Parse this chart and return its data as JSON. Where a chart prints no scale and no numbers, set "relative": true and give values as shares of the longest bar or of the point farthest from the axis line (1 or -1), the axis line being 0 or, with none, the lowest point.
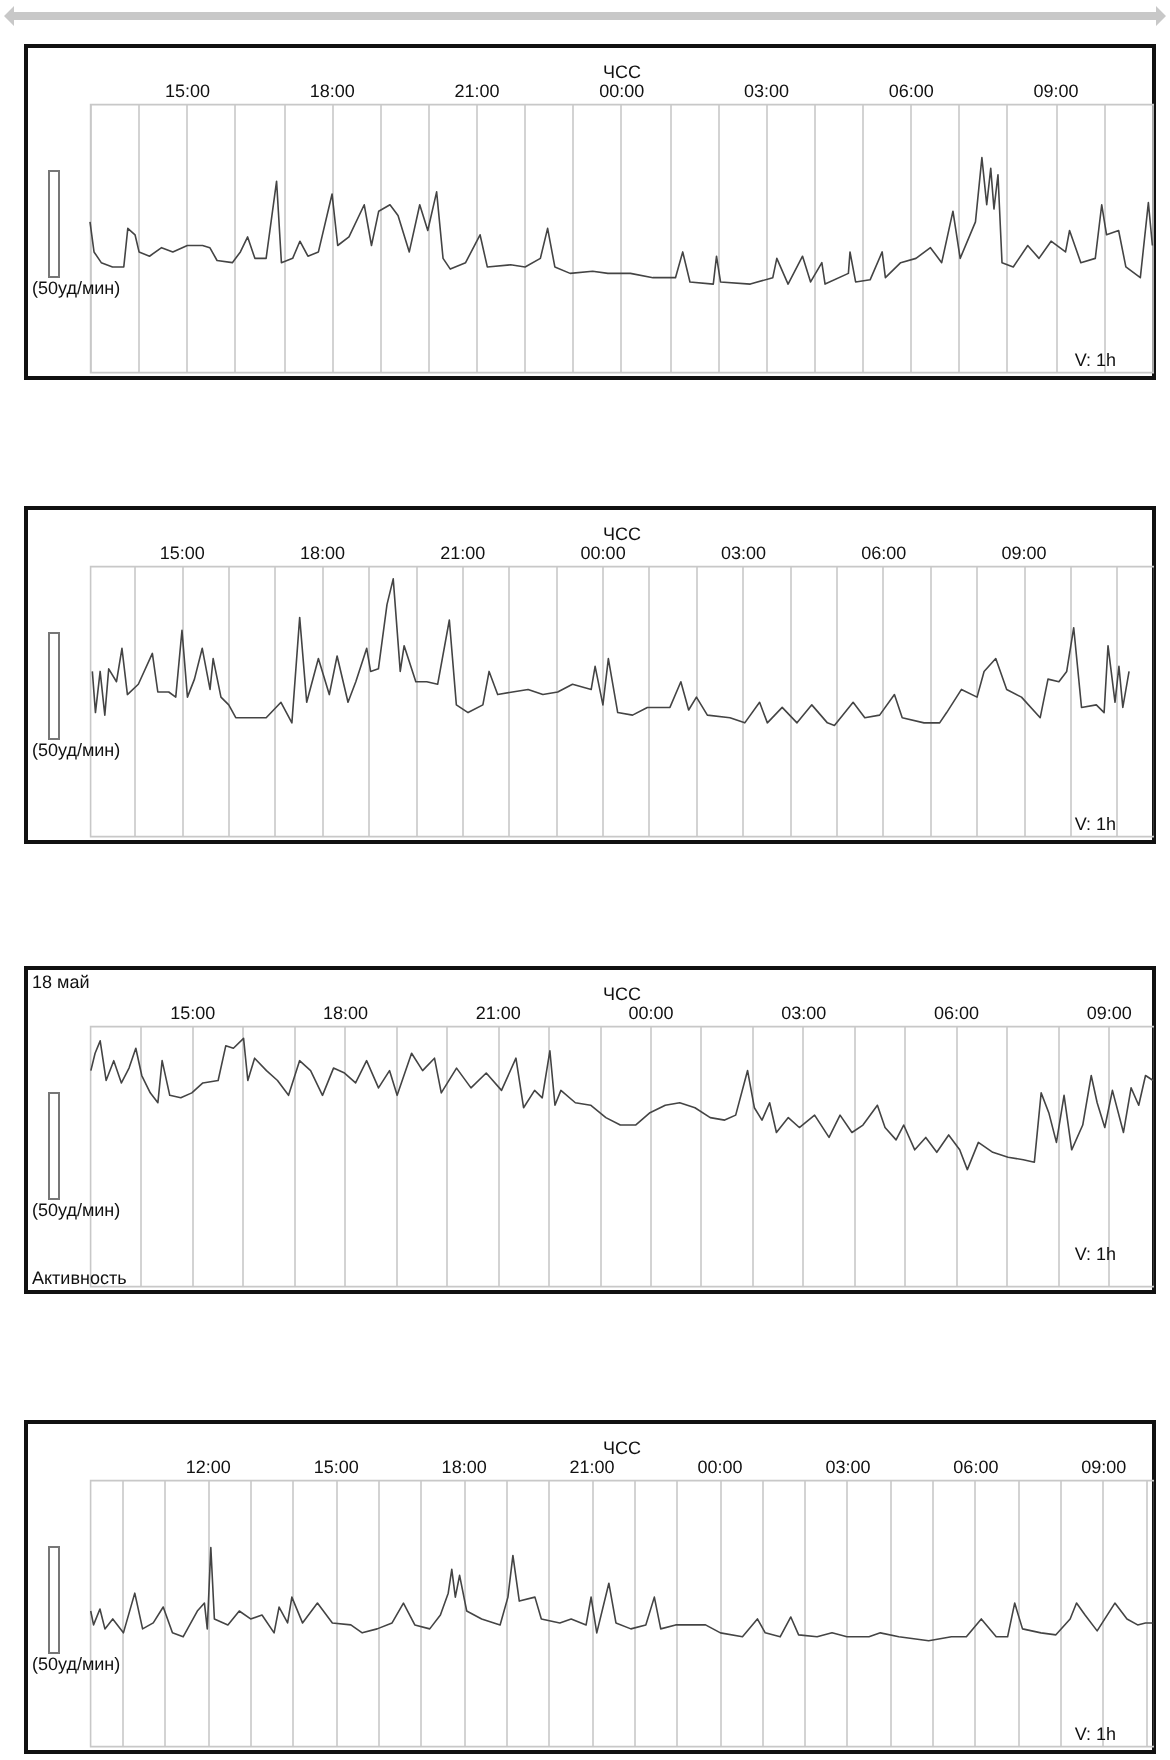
{
  "chart_data": [
    {
      "type": "line",
      "title": "ЧСС",
      "relative": true,
      "grid": "x",
      "annotations": [
        "(50уд/мин)",
        "V: 1h"
      ],
      "xlim": [
        "--05-18T13:00",
        "--05-19T11:03"
      ],
      "xticks": [
        {
          "value": "--05-18T13:00",
          "label": null
        },
        {
          "value": "--05-18T14:00",
          "label": null
        },
        {
          "value": "--05-18T15:00",
          "label": "15:00"
        },
        {
          "value": "--05-18T16:00",
          "label": null
        },
        {
          "value": "--05-18T17:00",
          "label": null
        },
        {
          "value": "--05-18T18:00",
          "label": "18:00"
        },
        {
          "value": "--05-18T19:00",
          "label": null
        },
        {
          "value": "--05-18T20:00",
          "label": null
        },
        {
          "value": "--05-18T21:00",
          "label": "21:00"
        },
        {
          "value": "--05-18T22:00",
          "label": null
        },
        {
          "value": "--05-18T23:00",
          "label": null
        },
        {
          "value": "--05-19T00:00",
          "label": "00:00"
        },
        {
          "value": "--05-19T01:00",
          "label": null
        },
        {
          "value": "--05-19T02:00",
          "label": null
        },
        {
          "value": "--05-19T03:00",
          "label": "03:00"
        },
        {
          "value": "--05-19T04:00",
          "label": null
        },
        {
          "value": "--05-19T05:00",
          "label": null
        },
        {
          "value": "--05-19T06:00",
          "label": "06:00"
        },
        {
          "value": "--05-19T07:00",
          "label": null
        },
        {
          "value": "--05-19T08:00",
          "label": null
        },
        {
          "value": "--05-19T09:00",
          "label": "09:00"
        },
        {
          "value": "--05-19T10:00",
          "label": null
        },
        {
          "value": "--05-19T11:00",
          "label": null
        }
      ],
      "x": [
        "--05-18T13:00",
        "--05-18T13:05",
        "--05-18T13:14",
        "--05-18T13:28",
        "--05-18T13:42",
        "--05-18T13:47",
        "--05-18T13:56",
        "--05-18T14:01",
        "--05-18T14:14",
        "--05-18T14:29",
        "--05-18T14:43",
        "--05-18T15:01",
        "--05-18T15:20",
        "--05-18T15:29",
        "--05-18T15:38",
        "--05-18T15:57",
        "--05-18T16:07",
        "--05-18T16:16",
        "--05-18T16:25",
        "--05-18T16:39",
        "--05-18T16:52",
        "--05-18T16:58",
        "--05-18T17:12",
        "--05-18T17:21",
        "--05-18T17:31",
        "--05-18T17:44",
        "--05-18T18:01",
        "--05-18T18:08",
        "--05-18T18:22",
        "--05-18T18:41",
        "--05-18T18:50",
        "--05-18T18:59",
        "--05-18T19:13",
        "--05-18T19:23",
        "--05-18T19:37",
        "--05-18T19:50",
        "--05-18T20:00",
        "--05-18T20:11",
        "--05-18T20:19",
        "--05-18T20:28",
        "--05-18T20:47",
        "--05-18T21:05",
        "--05-18T21:14",
        "--05-18T21:43",
        "--05-18T22:01",
        "--05-18T22:20",
        "--05-18T22:29",
        "--05-18T22:38",
        "--05-18T22:57",
        "--05-18T23:25",
        "--05-18T23:44",
        "--05-19T00:12",
        "--05-19T00:40",
        "--05-19T01:08",
        "--05-19T01:17",
        "--05-19T01:26",
        "--05-19T01:55",
        "--05-19T01:59",
        "--05-19T02:04",
        "--05-19T02:41",
        "--05-19T03:09",
        "--05-19T03:14",
        "--05-19T03:28",
        "--05-19T03:46",
        "--05-19T03:56",
        "--05-19T04:10",
        "--05-19T04:14",
        "--05-19T04:43",
        "--05-19T04:45",
        "--05-19T04:52",
        "--05-19T05:10",
        "--05-19T05:25",
        "--05-19T05:29",
        "--05-19T05:48",
        "--05-19T06:07",
        "--05-19T06:25",
        "--05-19T06:39",
        "--05-19T06:53",
        "--05-19T07:02",
        "--05-19T07:21",
        "--05-19T07:29",
        "--05-19T07:35",
        "--05-19T07:40",
        "--05-19T07:44",
        "--05-19T07:49",
        "--05-19T07:54",
        "--05-19T08:08",
        "--05-19T08:26",
        "--05-19T08:40",
        "--05-19T08:55",
        "--05-19T09:13",
        "--05-19T09:18",
        "--05-19T09:32",
        "--05-19T09:50",
        "--05-19T09:58",
        "--05-19T10:04",
        "--05-19T10:19",
        "--05-19T10:28",
        "--05-19T10:46",
        "--05-19T10:56",
        "--05-19T11:01"
      ],
      "series": [
        {
          "color": "#444444",
          "values": [
            0.7,
            0.56,
            0.51,
            0.49,
            0.49,
            0.67,
            0.64,
            0.56,
            0.54,
            0.58,
            0.56,
            0.59,
            0.59,
            0.58,
            0.52,
            0.51,
            0.56,
            0.63,
            0.53,
            0.53,
            0.89,
            0.51,
            0.53,
            0.61,
            0.54,
            0.56,
            0.83,
            0.59,
            0.63,
            0.78,
            0.59,
            0.75,
            0.78,
            0.73,
            0.56,
            0.78,
            0.66,
            0.84,
            0.53,
            0.48,
            0.51,
            0.64,
            0.49,
            0.5,
            0.49,
            0.53,
            0.67,
            0.49,
            0.46,
            0.47,
            0.46,
            0.46,
            0.44,
            0.44,
            0.56,
            0.42,
            0.41,
            0.54,
            0.42,
            0.41,
            0.44,
            0.53,
            0.41,
            0.54,
            0.42,
            0.51,
            0.41,
            0.46,
            0.56,
            0.42,
            0.43,
            0.56,
            0.44,
            0.51,
            0.53,
            0.58,
            0.51,
            0.75,
            0.53,
            0.7,
            1,
            0.78,
            0.95,
            0.76,
            0.92,
            0.51,
            0.49,
            0.59,
            0.53,
            0.61,
            0.56,
            0.66,
            0.51,
            0.53,
            0.78,
            0.64,
            0.66,
            0.49,
            0.44,
            0.79,
            0.59
          ]
        }
      ]
    },
    {
      "type": "line",
      "title": "ЧСС",
      "relative": true,
      "grid": "x",
      "annotations": [
        "(50уд/мин)",
        "V: 1h"
      ],
      "xlim": [
        "--05-18T13:03",
        "--05-19T11:48"
      ],
      "xticks": [
        {
          "value": "--05-18T14:00",
          "label": null
        },
        {
          "value": "--05-18T15:00",
          "label": "15:00"
        },
        {
          "value": "--05-18T16:00",
          "label": null
        },
        {
          "value": "--05-18T17:00",
          "label": null
        },
        {
          "value": "--05-18T18:00",
          "label": "18:00"
        },
        {
          "value": "--05-18T19:00",
          "label": null
        },
        {
          "value": "--05-18T20:00",
          "label": null
        },
        {
          "value": "--05-18T21:00",
          "label": "21:00"
        },
        {
          "value": "--05-18T22:00",
          "label": null
        },
        {
          "value": "--05-18T23:00",
          "label": null
        },
        {
          "value": "--05-19T00:00",
          "label": "00:00"
        },
        {
          "value": "--05-19T01:00",
          "label": null
        },
        {
          "value": "--05-19T02:00",
          "label": null
        },
        {
          "value": "--05-19T03:00",
          "label": "03:00"
        },
        {
          "value": "--05-19T04:00",
          "label": null
        },
        {
          "value": "--05-19T05:00",
          "label": null
        },
        {
          "value": "--05-19T06:00",
          "label": "06:00"
        },
        {
          "value": "--05-19T07:00",
          "label": null
        },
        {
          "value": "--05-19T08:00",
          "label": null
        },
        {
          "value": "--05-19T09:00",
          "label": "09:00"
        },
        {
          "value": "--05-19T10:00",
          "label": null
        },
        {
          "value": "--05-19T11:00",
          "label": null
        }
      ],
      "x": [
        "--05-18T13:06",
        "--05-18T13:10",
        "--05-18T13:16",
        "--05-18T13:22",
        "--05-18T13:27",
        "--05-18T13:37",
        "--05-18T13:44",
        "--05-18T13:51",
        "--05-18T14:05",
        "--05-18T14:23",
        "--05-18T14:30",
        "--05-18T14:44",
        "--05-18T14:53",
        "--05-18T15:01",
        "--05-18T15:08",
        "--05-18T15:17",
        "--05-18T15:27",
        "--05-18T15:37",
        "--05-18T15:41",
        "--05-18T15:51",
        "--05-18T16:01",
        "--05-18T16:10",
        "--05-18T16:29",
        "--05-18T16:49",
        "--05-18T17:08",
        "--05-18T17:22",
        "--05-18T17:32",
        "--05-18T17:41",
        "--05-18T17:56",
        "--05-18T18:10",
        "--05-18T18:20",
        "--05-18T18:34",
        "--05-18T18:44",
        "--05-18T18:58",
        "--05-18T19:03",
        "--05-18T19:13",
        "--05-18T19:24",
        "--05-18T19:32",
        "--05-18T19:41",
        "--05-18T19:46",
        "--05-18T20:01",
        "--05-18T20:15",
        "--05-18T20:29",
        "--05-18T20:44",
        "--05-18T20:53",
        "--05-18T21:08",
        "--05-18T21:27",
        "--05-18T21:35",
        "--05-18T21:46",
        "--05-18T22:05",
        "--05-18T22:25",
        "--05-18T22:44",
        "--05-18T23:03",
        "--05-18T23:22",
        "--05-18T23:46",
        "--05-18T23:51",
        "--05-19T00:01",
        "--05-19T00:08",
        "--05-19T00:20",
        "--05-19T00:39",
        "--05-19T00:58",
        "--05-19T01:27",
        "--05-19T01:41",
        "--05-19T01:51",
        "--05-19T02:01",
        "--05-19T02:15",
        "--05-19T02:44",
        "--05-19T03:03",
        "--05-19T03:22",
        "--05-19T03:32",
        "--05-19T03:51",
        "--05-19T04:10",
        "--05-19T04:29",
        "--05-19T04:49",
        "--05-19T04:58",
        "--05-19T05:22",
        "--05-19T05:37",
        "--05-19T05:56",
        "--05-19T06:15",
        "--05-19T06:25",
        "--05-19T06:53",
        "--05-19T07:13",
        "--05-19T07:22",
        "--05-19T07:41",
        "--05-19T08:01",
        "--05-19T08:10",
        "--05-19T08:25",
        "--05-19T08:39",
        "--05-19T08:58",
        "--05-19T09:22",
        "--05-19T09:32",
        "--05-19T09:46",
        "--05-19T09:56",
        "--05-19T10:05",
        "--05-19T10:15",
        "--05-19T10:34",
        "--05-19T10:44",
        "--05-19T10:49",
        "--05-19T10:58",
        "--05-19T11:03",
        "--05-19T11:08",
        "--05-19T11:16"
      ],
      "series": [
        {
          "color": "#444444",
          "values": [
            0.64,
            0.48,
            0.64,
            0.47,
            0.65,
            0.6,
            0.73,
            0.55,
            0.59,
            0.71,
            0.56,
            0.56,
            0.54,
            0.8,
            0.54,
            0.61,
            0.73,
            0.57,
            0.69,
            0.54,
            0.51,
            0.46,
            0.46,
            0.46,
            0.52,
            0.44,
            0.85,
            0.52,
            0.69,
            0.55,
            0.7,
            0.52,
            0.6,
            0.73,
            0.64,
            0.65,
            0.9,
            1,
            0.64,
            0.74,
            0.6,
            0.6,
            0.59,
            0.84,
            0.51,
            0.48,
            0.51,
            0.64,
            0.55,
            0.56,
            0.57,
            0.55,
            0.56,
            0.59,
            0.57,
            0.66,
            0.51,
            0.69,
            0.48,
            0.47,
            0.5,
            0.5,
            0.6,
            0.49,
            0.54,
            0.47,
            0.46,
            0.44,
            0.52,
            0.44,
            0.5,
            0.44,
            0.51,
            0.44,
            0.43,
            0.52,
            0.46,
            0.47,
            0.55,
            0.46,
            0.44,
            0.44,
            0.48,
            0.57,
            0.54,
            0.64,
            0.69,
            0.57,
            0.54,
            0.46,
            0.61,
            0.6,
            0.64,
            0.81,
            0.5,
            0.51,
            0.48,
            0.74,
            0.52,
            0.66,
            0.5,
            0.64
          ]
        }
      ]
    },
    {
      "type": "line",
      "title": "ЧСС",
      "relative": true,
      "grid": "x",
      "annotations": [
        "18 май",
        "(50уд/мин)",
        "V: 1h",
        "Активность"
      ],
      "xlim": [
        "--05-18T13:00",
        "--05-19T09:54"
      ],
      "xticks": [
        {
          "value": "--05-18T14:00",
          "label": null
        },
        {
          "value": "--05-18T15:00",
          "label": "15:00"
        },
        {
          "value": "--05-18T16:00",
          "label": null
        },
        {
          "value": "--05-18T17:00",
          "label": null
        },
        {
          "value": "--05-18T18:00",
          "label": "18:00"
        },
        {
          "value": "--05-18T19:00",
          "label": null
        },
        {
          "value": "--05-18T20:00",
          "label": null
        },
        {
          "value": "--05-18T21:00",
          "label": "21:00"
        },
        {
          "value": "--05-18T22:00",
          "label": null
        },
        {
          "value": "--05-18T23:00",
          "label": null
        },
        {
          "value": "--05-19T00:00",
          "label": "00:00"
        },
        {
          "value": "--05-19T01:00",
          "label": null
        },
        {
          "value": "--05-19T02:00",
          "label": null
        },
        {
          "value": "--05-19T03:00",
          "label": "03:00"
        },
        {
          "value": "--05-19T04:00",
          "label": null
        },
        {
          "value": "--05-19T05:00",
          "label": null
        },
        {
          "value": "--05-19T06:00",
          "label": "06:00"
        },
        {
          "value": "--05-19T07:00",
          "label": null
        },
        {
          "value": "--05-19T08:00",
          "label": null
        },
        {
          "value": "--05-19T09:00",
          "label": "09:00"
        }
      ],
      "x": [
        "--05-18T13:01",
        "--05-18T13:06",
        "--05-18T13:12",
        "--05-18T13:19",
        "--05-18T13:28",
        "--05-18T13:37",
        "--05-18T13:46",
        "--05-18T13:54",
        "--05-18T14:01",
        "--05-18T14:11",
        "--05-18T14:20",
        "--05-18T14:25",
        "--05-18T14:34",
        "--05-18T14:47",
        "--05-18T15:00",
        "--05-18T15:13",
        "--05-18T15:31",
        "--05-18T15:40",
        "--05-18T15:49",
        "--05-18T16:01",
        "--05-18T16:06",
        "--05-18T16:14",
        "--05-18T16:28",
        "--05-18T16:41",
        "--05-18T16:54",
        "--05-18T17:07",
        "--05-18T17:20",
        "--05-18T17:34",
        "--05-18T17:47",
        "--05-18T18:00",
        "--05-18T18:13",
        "--05-18T18:26",
        "--05-18T18:40",
        "--05-18T18:53",
        "--05-18T19:02",
        "--05-18T19:19",
        "--05-18T19:32",
        "--05-18T19:46",
        "--05-18T19:54",
        "--05-18T20:12",
        "--05-18T20:29",
        "--05-18T20:47",
        "--05-18T21:05",
        "--05-18T21:22",
        "--05-18T21:31",
        "--05-18T21:44",
        "--05-18T21:53",
        "--05-18T22:02",
        "--05-18T22:08",
        "--05-18T22:15",
        "--05-18T22:32",
        "--05-18T22:50",
        "--05-18T23:08",
        "--05-18T23:25",
        "--05-18T23:43",
        "--05-19T00:00",
        "--05-19T00:18",
        "--05-19T00:35",
        "--05-19T00:53",
        "--05-19T01:11",
        "--05-19T01:28",
        "--05-19T01:41",
        "--05-19T01:55",
        "--05-19T02:03",
        "--05-19T02:12",
        "--05-19T02:21",
        "--05-19T02:29",
        "--05-19T02:43",
        "--05-19T02:56",
        "--05-19T03:14",
        "--05-19T03:31",
        "--05-19T03:44",
        "--05-19T03:58",
        "--05-19T04:11",
        "--05-19T04:28",
        "--05-19T04:37",
        "--05-19T04:50",
        "--05-19T04:59",
        "--05-19T05:12",
        "--05-19T05:25",
        "--05-19T05:38",
        "--05-19T05:52",
        "--05-19T06:05",
        "--05-19T06:14",
        "--05-19T06:27",
        "--05-19T06:44",
        "--05-19T07:02",
        "--05-19T07:20",
        "--05-19T07:33",
        "--05-19T07:41",
        "--05-19T07:50",
        "--05-19T07:59",
        "--05-19T08:08",
        "--05-19T08:17",
        "--05-19T08:30",
        "--05-19T08:40",
        "--05-19T08:47",
        "--05-19T08:56",
        "--05-19T09:05",
        "--05-19T09:18",
        "--05-19T09:27",
        "--05-19T09:36",
        "--05-19T09:44",
        "--05-19T09:53"
      ],
      "series": [
        {
          "color": "#444444",
          "values": [
            0.87,
            0.94,
            0.99,
            0.83,
            0.91,
            0.82,
            0.88,
            0.96,
            0.85,
            0.78,
            0.74,
            0.91,
            0.77,
            0.76,
            0.78,
            0.82,
            0.83,
            0.97,
            0.96,
            1,
            0.83,
            0.92,
            0.87,
            0.83,
            0.77,
            0.91,
            0.87,
            0.77,
            0.88,
            0.86,
            0.82,
            0.91,
            0.8,
            0.87,
            0.77,
            0.94,
            0.87,
            0.92,
            0.78,
            0.88,
            0.8,
            0.86,
            0.79,
            0.92,
            0.72,
            0.79,
            0.76,
            0.95,
            0.73,
            0.79,
            0.74,
            0.73,
            0.68,
            0.65,
            0.65,
            0.7,
            0.73,
            0.74,
            0.72,
            0.68,
            0.67,
            0.69,
            0.87,
            0.72,
            0.67,
            0.74,
            0.62,
            0.68,
            0.64,
            0.69,
            0.6,
            0.69,
            0.62,
            0.65,
            0.73,
            0.64,
            0.59,
            0.65,
            0.55,
            0.6,
            0.54,
            0.61,
            0.55,
            0.47,
            0.58,
            0.54,
            0.52,
            0.51,
            0.5,
            0.78,
            0.7,
            0.58,
            0.77,
            0.55,
            0.65,
            0.85,
            0.74,
            0.64,
            0.79,
            0.62,
            0.8,
            0.73,
            0.85,
            0.83
          ]
        }
      ]
    },
    {
      "type": "line",
      "title": "ЧСС",
      "relative": true,
      "grid": "x",
      "annotations": [
        "(50уд/мин)",
        "V: 1h"
      ],
      "xlim": [
        "--05-18T09:15",
        "--05-19T10:12"
      ],
      "xticks": [
        {
          "value": "--05-18T10:00",
          "label": null
        },
        {
          "value": "--05-18T11:00",
          "label": null
        },
        {
          "value": "--05-18T12:00",
          "label": "12:00"
        },
        {
          "value": "--05-18T13:00",
          "label": null
        },
        {
          "value": "--05-18T14:00",
          "label": null
        },
        {
          "value": "--05-18T15:00",
          "label": "15:00"
        },
        {
          "value": "--05-18T16:00",
          "label": null
        },
        {
          "value": "--05-18T17:00",
          "label": null
        },
        {
          "value": "--05-18T18:00",
          "label": "18:00"
        },
        {
          "value": "--05-18T19:00",
          "label": null
        },
        {
          "value": "--05-18T20:00",
          "label": null
        },
        {
          "value": "--05-18T21:00",
          "label": "21:00"
        },
        {
          "value": "--05-18T22:00",
          "label": null
        },
        {
          "value": "--05-18T23:00",
          "label": null
        },
        {
          "value": "--05-19T00:00",
          "label": "00:00"
        },
        {
          "value": "--05-19T01:00",
          "label": null
        },
        {
          "value": "--05-19T02:00",
          "label": null
        },
        {
          "value": "--05-19T03:00",
          "label": "03:00"
        },
        {
          "value": "--05-19T04:00",
          "label": null
        },
        {
          "value": "--05-19T05:00",
          "label": null
        },
        {
          "value": "--05-19T06:00",
          "label": "06:00"
        },
        {
          "value": "--05-19T07:00",
          "label": null
        },
        {
          "value": "--05-19T08:00",
          "label": null
        },
        {
          "value": "--05-19T09:00",
          "label": "09:00"
        },
        {
          "value": "--05-19T10:00",
          "label": null
        }
      ],
      "x": [
        "--05-18T09:16",
        "--05-18T09:20",
        "--05-18T09:29",
        "--05-18T09:36",
        "--05-18T09:47",
        "--05-18T10:02",
        "--05-18T10:18",
        "--05-18T10:29",
        "--05-18T10:44",
        "--05-18T10:58",
        "--05-18T11:11",
        "--05-18T11:26",
        "--05-18T11:46",
        "--05-18T11:56",
        "--05-18T12:00",
        "--05-18T12:05",
        "--05-18T12:10",
        "--05-18T12:29",
        "--05-18T12:45",
        "--05-18T13:01",
        "--05-18T13:17",
        "--05-18T13:34",
        "--05-18T13:41",
        "--05-18T13:53",
        "--05-18T13:59",
        "--05-18T14:14",
        "--05-18T14:35",
        "--05-18T14:56",
        "--05-18T15:22",
        "--05-18T15:38",
        "--05-18T15:59",
        "--05-18T16:20",
        "--05-18T16:36",
        "--05-18T16:52",
        "--05-18T17:13",
        "--05-18T17:28",
        "--05-18T17:39",
        "--05-18T17:44",
        "--05-18T17:49",
        "--05-18T17:55",
        "--05-18T18:05",
        "--05-18T18:26",
        "--05-18T18:52",
        "--05-18T19:03",
        "--05-18T19:10",
        "--05-18T19:19",
        "--05-18T19:41",
        "--05-18T19:50",
        "--05-18T20:16",
        "--05-18T20:32",
        "--05-18T20:53",
        "--05-18T21:00",
        "--05-18T21:08",
        "--05-18T21:25",
        "--05-18T21:35",
        "--05-18T21:56",
        "--05-18T22:17",
        "--05-18T22:29",
        "--05-18T22:38",
        "--05-18T22:59",
        "--05-18T23:41",
        "--05-19T00:02",
        "--05-19T00:33",
        "--05-19T00:54",
        "--05-19T01:05",
        "--05-19T01:26",
        "--05-19T01:41",
        "--05-19T01:52",
        "--05-19T02:18",
        "--05-19T02:39",
        "--05-19T03:00",
        "--05-19T03:31",
        "--05-19T03:47",
        "--05-19T04:13",
        "--05-19T04:55",
        "--05-19T05:27",
        "--05-19T05:48",
        "--05-19T06:09",
        "--05-19T06:30",
        "--05-19T06:46",
        "--05-19T06:56",
        "--05-19T07:07",
        "--05-19T07:33",
        "--05-19T07:54",
        "--05-19T08:14",
        "--05-19T08:23",
        "--05-19T08:35",
        "--05-19T08:52",
        "--05-19T09:17",
        "--05-19T09:34",
        "--05-19T09:49",
        "--05-19T10:00",
        "--05-19T10:10"
      ],
      "series": [
        {
          "color": "#444444",
          "values": [
            0.68,
            0.61,
            0.69,
            0.59,
            0.64,
            0.57,
            0.77,
            0.59,
            0.62,
            0.7,
            0.57,
            0.55,
            0.68,
            0.72,
            0.59,
            1,
            0.64,
            0.61,
            0.68,
            0.64,
            0.66,
            0.57,
            0.7,
            0.62,
            0.75,
            0.62,
            0.72,
            0.62,
            0.61,
            0.57,
            0.59,
            0.62,
            0.72,
            0.61,
            0.59,
            0.66,
            0.77,
            0.89,
            0.75,
            0.86,
            0.68,
            0.64,
            0.61,
            0.75,
            0.96,
            0.73,
            0.75,
            0.64,
            0.62,
            0.64,
            0.61,
            0.75,
            0.57,
            0.82,
            0.62,
            0.59,
            0.61,
            0.75,
            0.59,
            0.61,
            0.61,
            0.57,
            0.55,
            0.64,
            0.57,
            0.55,
            0.65,
            0.56,
            0.55,
            0.57,
            0.55,
            0.55,
            0.57,
            0.55,
            0.53,
            0.55,
            0.55,
            0.64,
            0.55,
            0.55,
            0.72,
            0.59,
            0.57,
            0.56,
            0.64,
            0.72,
            0.66,
            0.58,
            0.72,
            0.64,
            0.61,
            0.62,
            0.62
          ]
        }
      ]
    }
  ]
}
